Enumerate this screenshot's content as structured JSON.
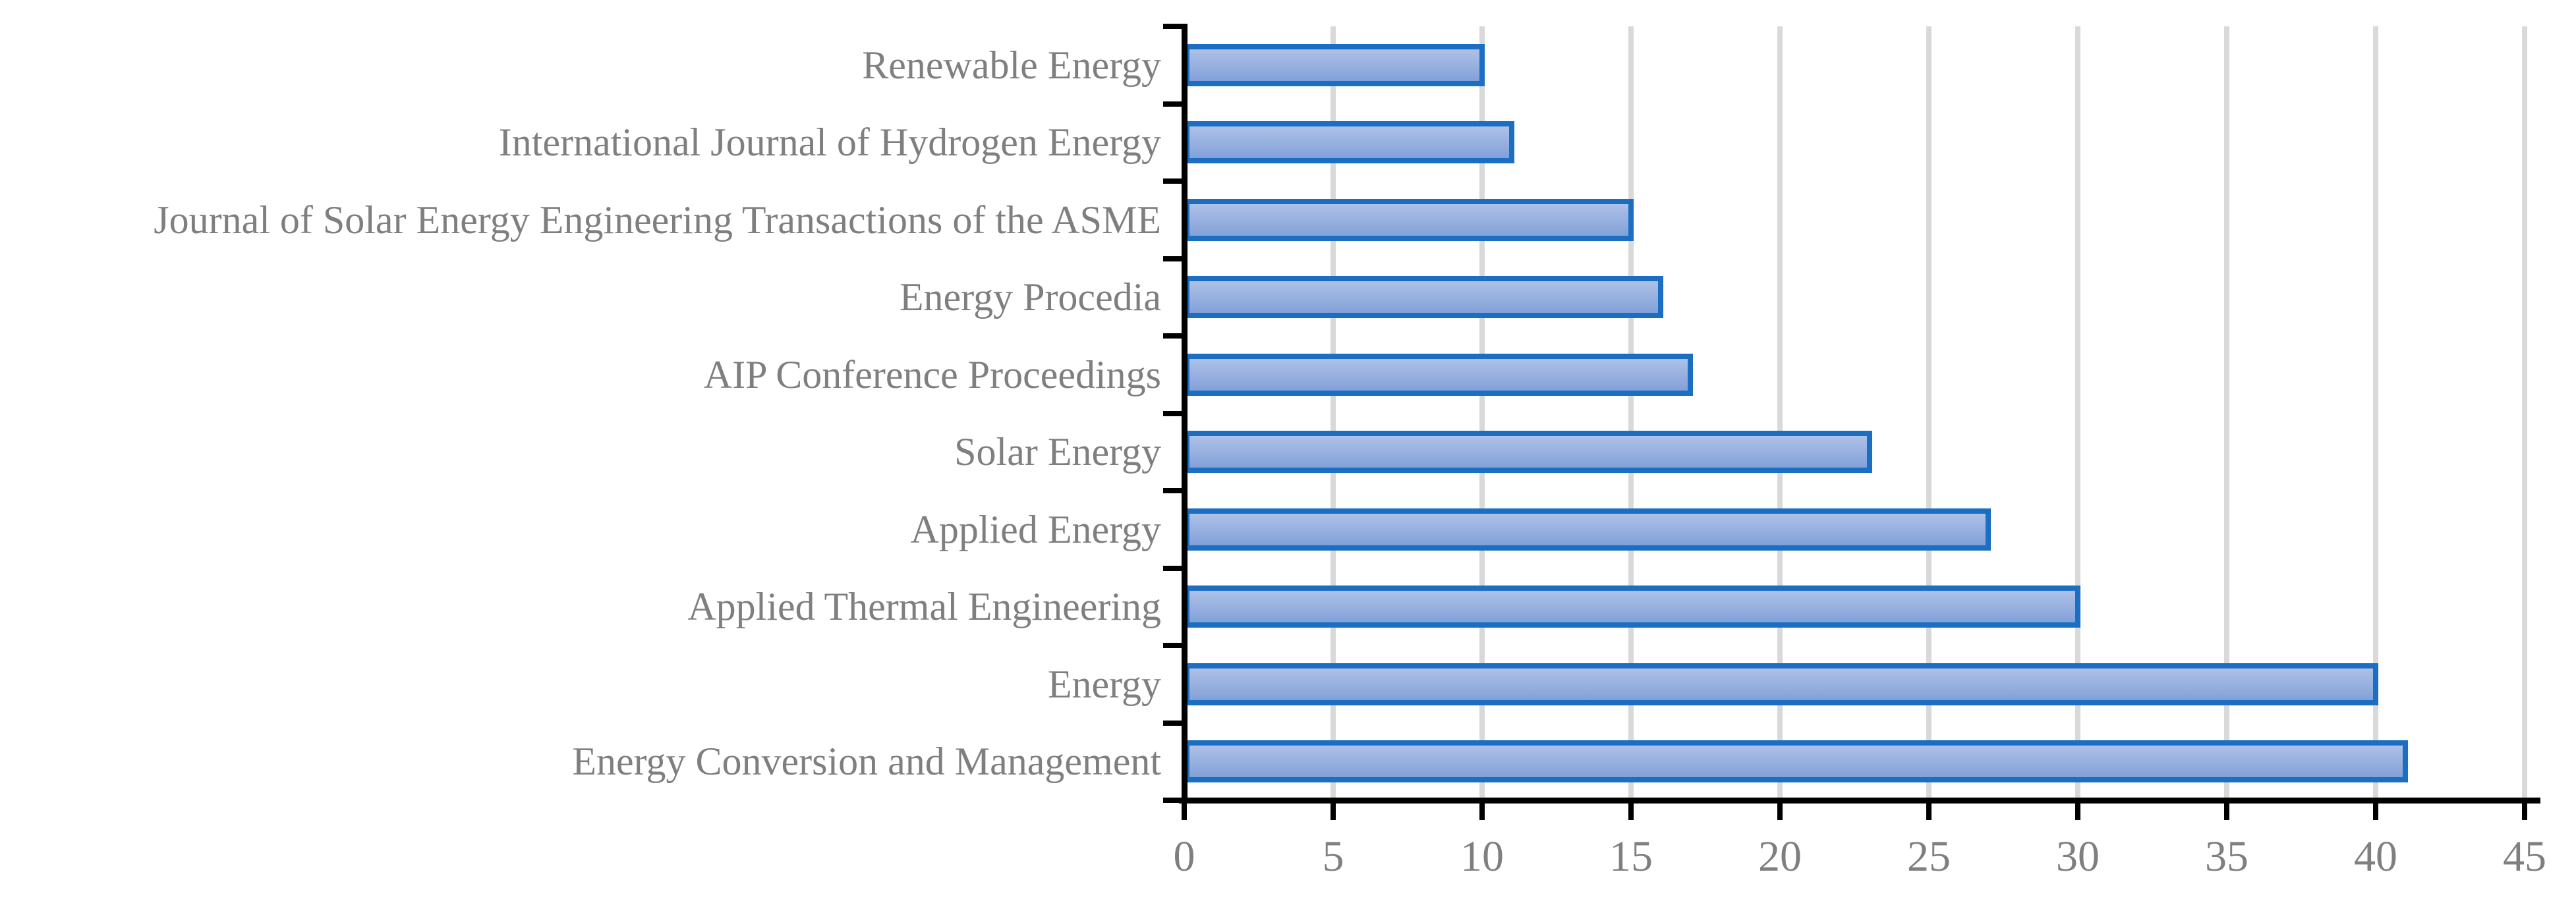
{
  "chart_data": {
    "type": "bar",
    "orientation": "horizontal",
    "title": "",
    "xlabel": "",
    "ylabel": "",
    "categories": [
      "Renewable Energy",
      "International Journal of Hydrogen Energy",
      "Journal of Solar Energy Engineering Transactions of the ASME",
      "Energy Procedia",
      "AIP Conference Proceedings",
      "Solar Energy",
      "Applied Energy",
      "Applied Thermal Engineering",
      "Energy",
      "Energy Conversion and Management"
    ],
    "values": [
      10,
      11,
      15,
      16,
      17,
      23,
      27,
      30,
      40,
      41
    ],
    "xlim": [
      0,
      45
    ],
    "x_ticks": [
      0,
      5,
      10,
      15,
      20,
      25,
      30,
      35,
      40,
      45
    ],
    "grid": "vertical-gridlines-at-every-x-tick",
    "legend": "none",
    "colors": {
      "bar_fill_top": "#aec1e7",
      "bar_fill_bottom": "#82a1d9",
      "bar_border": "#1b6ec2",
      "gridline": "#d9d9d9",
      "axis": "#000000",
      "text": "#7f7f7f"
    }
  }
}
